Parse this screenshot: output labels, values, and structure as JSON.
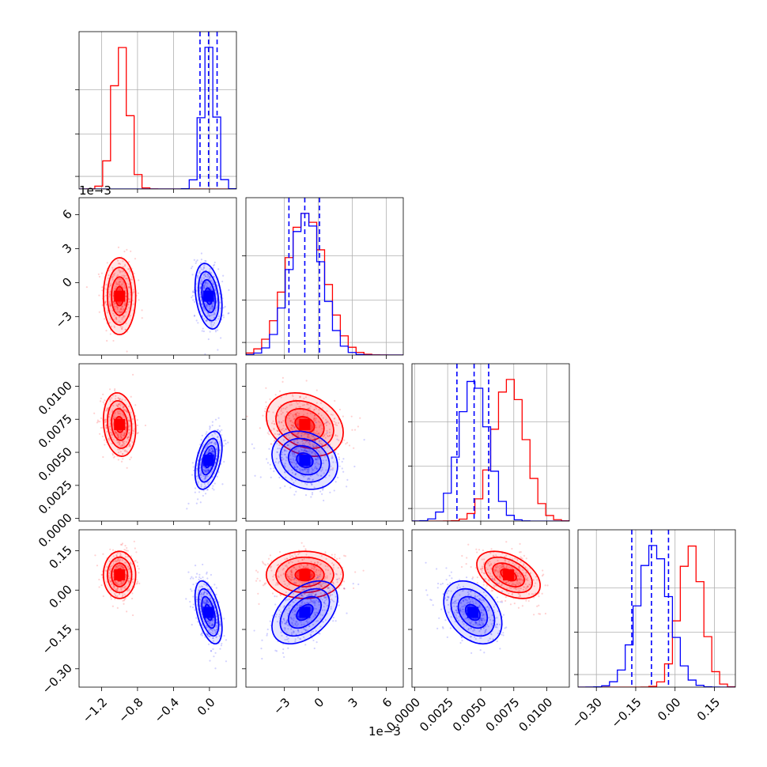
{
  "chart_data": {
    "type": "corner",
    "title": "",
    "parameters": [
      "",
      "",
      "",
      ""
    ],
    "axis_offset_labels": {
      "p0_on_p1_row": "1e−3",
      "p1_bottom": "1e−3"
    },
    "ranges": [
      [
        -1.45,
        0.3
      ],
      [
        -6.4,
        7.5
      ],
      [
        -0.0002,
        0.0117
      ],
      [
        -0.37,
        0.23
      ]
    ],
    "ticks": [
      {
        "values": [
          -1.2,
          -0.8,
          -0.4,
          0.0
        ],
        "labels": [
          "−1.2",
          "−0.8",
          "−0.4",
          "0.0"
        ]
      },
      {
        "values": [
          -3,
          0,
          3,
          6
        ],
        "labels": [
          "−3",
          "0",
          "3",
          "6"
        ]
      },
      {
        "values": [
          0.0,
          0.0025,
          0.005,
          0.0075,
          0.01
        ],
        "labels": [
          "0.0000",
          "0.0025",
          "0.0050",
          "0.0075",
          "0.0100"
        ]
      },
      {
        "values": [
          -0.3,
          -0.15,
          0.0,
          0.15
        ],
        "labels": [
          "−0.30",
          "−0.15",
          "0.00",
          "0.15"
        ]
      }
    ],
    "y_ticks_row": {
      "1": {
        "values": [
          -3,
          0,
          3,
          6
        ],
        "labels": [
          "−3",
          "0",
          "3",
          "6"
        ]
      },
      "2": {
        "values": [
          0.0,
          0.0025,
          0.005,
          0.0075,
          0.01
        ],
        "labels": [
          "0.0000",
          "0.0025",
          "0.0050",
          "0.0075",
          "0.0100"
        ]
      },
      "3": {
        "values": [
          -0.3,
          -0.15,
          0.0,
          0.15
        ],
        "labels": [
          "−0.30",
          "−0.15",
          "0.00",
          "0.15"
        ]
      }
    },
    "series": [
      {
        "color": "#ff0000",
        "means": [
          -1.0,
          -1.2,
          0.0071,
          0.058
        ],
        "stds": [
          0.09,
          1.7,
          0.0012,
          0.045
        ],
        "correlations": {
          "1-0": 0.0,
          "2-0": -0.15,
          "3-0": 0.0,
          "2-1": -0.25,
          "3-1": 0.0,
          "3-2": -0.45
        }
      },
      {
        "color": "#0000ff",
        "means": [
          -0.01,
          -1.2,
          0.0044,
          -0.085
        ],
        "stds": [
          0.075,
          1.45,
          0.0011,
          0.06
        ],
        "correlations": {
          "1-0": -0.3,
          "2-0": 0.45,
          "3-0": -0.5,
          "2-1": -0.2,
          "3-1": 0.45,
          "3-2": -0.35
        },
        "quantile_lines": [
          [
            -0.105,
            -0.01,
            0.085
          ],
          [
            -2.6,
            -1.2,
            0.1
          ],
          [
            0.0032,
            0.0045,
            0.0056
          ],
          [
            -0.165,
            -0.09,
            -0.025
          ]
        ]
      }
    ],
    "quantile_line_color": "#0000ff",
    "grid": true
  }
}
